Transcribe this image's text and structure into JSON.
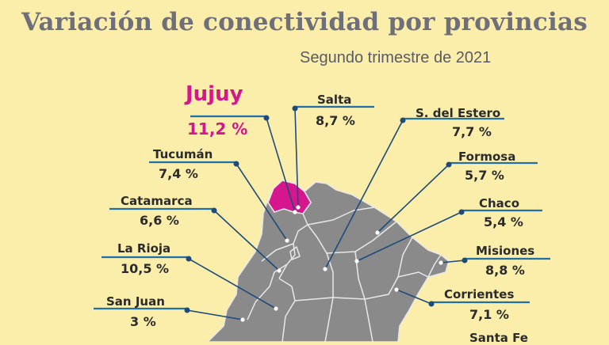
{
  "header": {
    "title": "Variación de conectividad por provincias",
    "subtitle": "Segundo trimestre de 2021"
  },
  "colors": {
    "background": "#fbeeaa",
    "map_fill": "#8a8a8a",
    "map_border": "#e8e8e8",
    "highlight": "#d6168c",
    "leader_line": "#1f4b7a",
    "label_underline": "#1f6fa8",
    "title": "#6f6f7a"
  },
  "provinces": [
    {
      "id": "jujuy",
      "name": "Jujuy",
      "value": "11,2 %",
      "highlight": true
    },
    {
      "id": "salta",
      "name": "Salta",
      "value": "8,7 %"
    },
    {
      "id": "sdelestero",
      "name": "S. del Estero",
      "value": "7,7 %"
    },
    {
      "id": "tucuman",
      "name": "Tucumán",
      "value": "7,4 %"
    },
    {
      "id": "formosa",
      "name": "Formosa",
      "value": "5,7 %"
    },
    {
      "id": "catamarca",
      "name": "Catamarca",
      "value": "6,6 %"
    },
    {
      "id": "chaco",
      "name": "Chaco",
      "value": "5,4 %"
    },
    {
      "id": "larioja",
      "name": "La Rioja",
      "value": "10,5 %"
    },
    {
      "id": "misiones",
      "name": "Misiones",
      "value": "8,8 %"
    },
    {
      "id": "sanjuan",
      "name": "San Juan",
      "value": "3 %"
    },
    {
      "id": "corrientes",
      "name": "Corrientes",
      "value": "7,1 %"
    },
    {
      "id": "santafe",
      "name": "Santa Fe",
      "value": ""
    }
  ]
}
